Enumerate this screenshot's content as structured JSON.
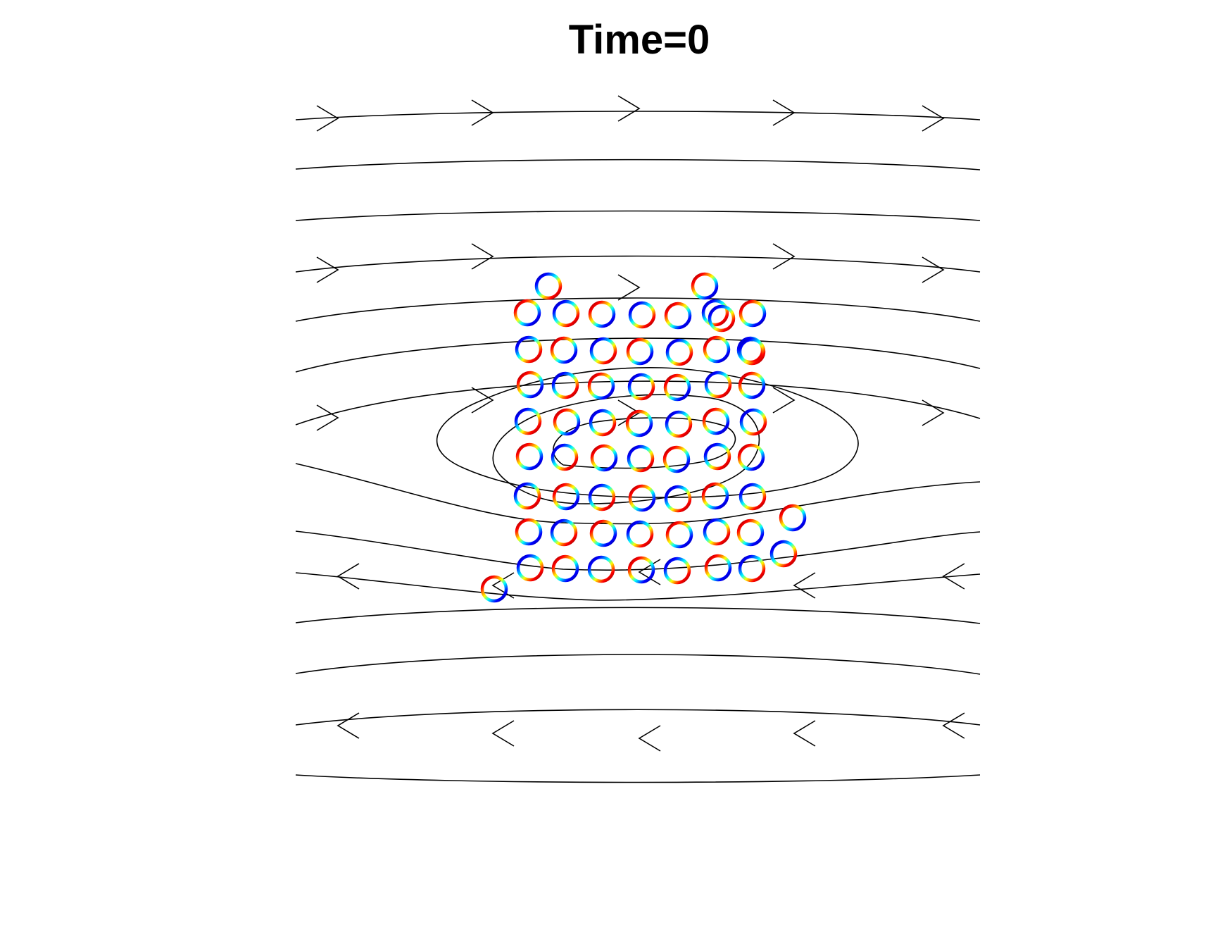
{
  "figure": {
    "title": "Time=0"
  },
  "colors": {
    "streamline": "#000000",
    "background": "#ffffff",
    "ring_colormap": [
      "#00008f",
      "#0000ff",
      "#00ffff",
      "#ffff00",
      "#ff0000",
      "#800000"
    ]
  },
  "visual": {
    "streamline_count": 15,
    "closed_orbit_count": 3,
    "ring_count": 63
  }
}
